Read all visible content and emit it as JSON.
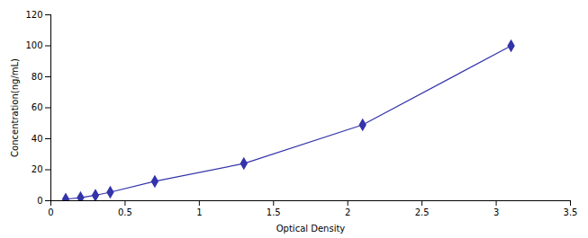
{
  "chart_data": {
    "type": "line",
    "xlabel": "Optical Density",
    "ylabel": "Concentration(ng/mL)",
    "x": [
      0.1,
      0.2,
      0.3,
      0.4,
      0.7,
      1.3,
      2.1,
      3.1
    ],
    "values": [
      1.0,
      2.0,
      3.5,
      5.5,
      12.5,
      24.0,
      49.0,
      100.0
    ],
    "y_err": [
      0.4,
      0.4,
      0.4,
      0.4,
      0.6,
      0.8,
      1.5,
      1.0
    ],
    "color": "#3333aa",
    "marker": "diamond",
    "xlim": [
      0,
      3.5
    ],
    "ylim": [
      0,
      120
    ],
    "xticks": [
      0,
      0.5,
      1,
      1.5,
      2,
      2.5,
      3,
      3.5
    ],
    "yticks": [
      0,
      20,
      40,
      60,
      80,
      100,
      120
    ],
    "grid": false
  }
}
